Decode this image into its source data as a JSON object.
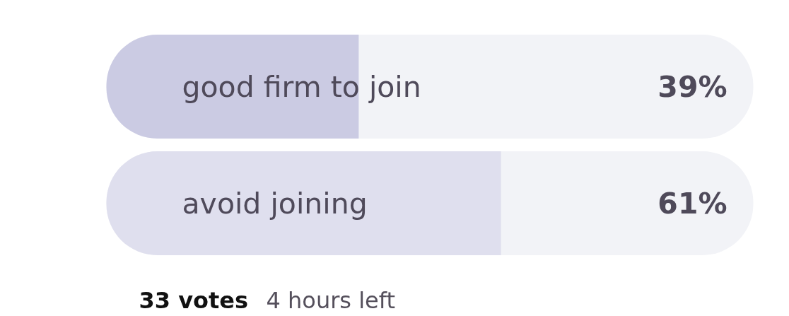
{
  "chart_data": {
    "type": "bar",
    "orientation": "horizontal",
    "categories": [
      "good firm to join",
      "avoid joining"
    ],
    "values": [
      39,
      61
    ],
    "colors": [
      "#cbcbe3",
      "#dfdfee"
    ],
    "value_labels": [
      "39%",
      "61%"
    ],
    "xlim": [
      0,
      100
    ],
    "tick_labels": false,
    "annotations": [
      "33 votes",
      "4 hours left"
    ]
  }
}
